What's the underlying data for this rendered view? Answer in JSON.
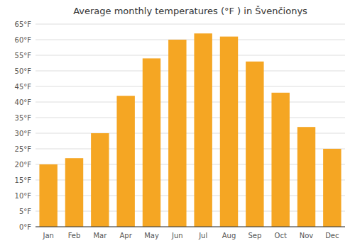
{
  "chart_data": {
    "type": "bar",
    "title": "Average monthly temperatures (°F ) in Švenčionys",
    "categories": [
      "Jan",
      "Feb",
      "Mar",
      "Apr",
      "May",
      "Jun",
      "Jul",
      "Aug",
      "Sep",
      "Oct",
      "Nov",
      "Dec"
    ],
    "values": [
      20,
      22,
      30,
      42,
      54,
      60,
      62,
      61,
      53,
      43,
      32,
      25
    ],
    "color": "#F5A623",
    "ylim": [
      0,
      65
    ],
    "yticks": [
      {
        "value": 0,
        "label": "0°F"
      },
      {
        "value": 5,
        "label": "5°F"
      },
      {
        "value": 10,
        "label": "10°F"
      },
      {
        "value": 15,
        "label": "15°F"
      },
      {
        "value": 20,
        "label": "20°F"
      },
      {
        "value": 25,
        "label": "25°F"
      },
      {
        "value": 30,
        "label": "30°F"
      },
      {
        "value": 35,
        "label": "35°F"
      },
      {
        "value": 40,
        "label": "40°F"
      },
      {
        "value": 45,
        "label": "45°F"
      },
      {
        "value": 50,
        "label": "50°F"
      },
      {
        "value": 55,
        "label": "55°F"
      },
      {
        "value": 60,
        "label": "60°F"
      },
      {
        "value": 65,
        "label": "65°F"
      }
    ],
    "grid": true
  }
}
